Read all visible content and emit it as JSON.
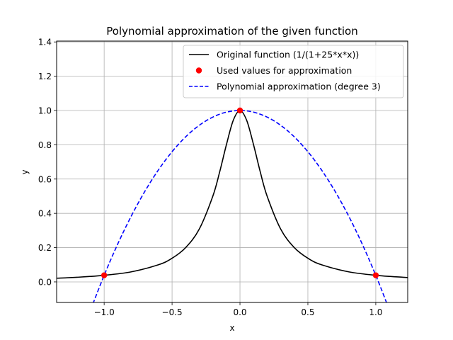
{
  "chart_data": {
    "type": "line",
    "title": "Polynomial approximation of the given function",
    "xlabel": "x",
    "ylabel": "y",
    "xlim": [
      -1.35,
      1.235
    ],
    "ylim": [
      -0.12,
      1.405
    ],
    "xticks": [
      -1.0,
      -0.5,
      0.0,
      0.5,
      1.0
    ],
    "xtick_labels": [
      "−1.0",
      "−0.5",
      "0.0",
      "0.5",
      "1.0"
    ],
    "yticks": [
      0.0,
      0.2,
      0.4,
      0.6,
      0.8,
      1.0,
      1.2,
      1.4
    ],
    "ytick_labels": [
      "0.0",
      "0.2",
      "0.4",
      "0.6",
      "0.8",
      "1.0",
      "1.2",
      "1.4"
    ],
    "grid": true,
    "legend_position": "top-right",
    "series": [
      {
        "name": "Original function (1/(1+25*x*x))",
        "kind": "line",
        "style": "solid",
        "color": "#000000",
        "x": [
          -1.35,
          -1.2,
          -1.0,
          -0.8,
          -0.6,
          -0.5,
          -0.4,
          -0.3,
          -0.2,
          -0.15,
          -0.1,
          -0.05,
          0.0,
          0.05,
          0.1,
          0.15,
          0.2,
          0.3,
          0.4,
          0.5,
          0.6,
          0.8,
          1.0,
          1.2,
          1.235
        ],
        "y": [
          0.0215,
          0.027,
          0.0385,
          0.0588,
          0.1,
          0.1379,
          0.2,
          0.3077,
          0.5,
          0.64,
          0.8,
          0.9412,
          1.0,
          0.9412,
          0.8,
          0.64,
          0.5,
          0.3077,
          0.2,
          0.1379,
          0.1,
          0.0588,
          0.0385,
          0.027,
          0.0256
        ]
      },
      {
        "name": "Used values for approximation",
        "kind": "scatter",
        "color": "#ff0000",
        "x": [
          -1.0,
          0.0,
          1.0
        ],
        "y": [
          0.0385,
          1.0,
          0.0385
        ]
      },
      {
        "name": "Polynomial approximation (degree 3)",
        "kind": "line",
        "style": "dashed",
        "color": "#0000ff",
        "x": [
          -1.1,
          -1.0,
          -0.9,
          -0.8,
          -0.7,
          -0.6,
          -0.5,
          -0.4,
          -0.3,
          -0.2,
          -0.1,
          0.0,
          0.1,
          0.2,
          0.3,
          0.4,
          0.5,
          0.6,
          0.7,
          0.8,
          0.9,
          1.0,
          1.08
        ],
        "y": [
          -0.1634,
          0.0385,
          0.2211,
          0.3846,
          0.5288,
          0.6538,
          0.7596,
          0.8462,
          0.9135,
          0.9615,
          0.9904,
          1.0,
          0.9904,
          0.9615,
          0.9135,
          0.8462,
          0.7596,
          0.6538,
          0.5288,
          0.3846,
          0.2211,
          0.0385,
          -0.1226
        ]
      }
    ]
  }
}
